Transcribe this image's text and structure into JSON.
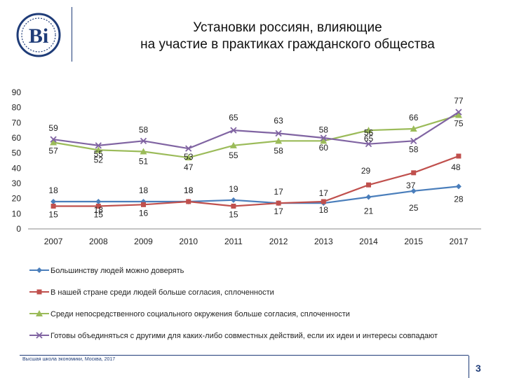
{
  "header": {
    "title_line1": "Установки россиян, влияющие",
    "title_line2": "на участие в практиках гражданского общества"
  },
  "footer": {
    "source": "Высшая школа экономики, Москва, 2017",
    "page": "3"
  },
  "colors": {
    "s1": "#4a7ebb",
    "s2": "#c0504d",
    "s3": "#9bbb59",
    "s4": "#8064a2",
    "brand": "#1f3c78"
  },
  "chart_data": {
    "type": "line",
    "categories": [
      "2007",
      "2008",
      "2009",
      "2010",
      "2011",
      "2012",
      "2013",
      "2014",
      "2015",
      "2017"
    ],
    "ylim": [
      0,
      90
    ],
    "yticks": [
      0,
      10,
      20,
      30,
      40,
      50,
      60,
      70,
      80,
      90
    ],
    "legend_position": "bottom",
    "series": [
      {
        "name": "Большинству людей можно доверять",
        "color": "#4a7ebb",
        "marker": "diamond",
        "values": [
          18,
          18,
          18,
          18,
          19,
          17,
          17,
          21,
          25,
          28
        ]
      },
      {
        "name": "В нашей стране среди людей больше согласия, сплоченности",
        "color": "#c0504d",
        "marker": "square",
        "values": [
          15,
          15,
          16,
          18,
          15,
          17,
          18,
          29,
          37,
          48
        ]
      },
      {
        "name": "Среди непосредственного социального окружения больше согласия, сплоченности",
        "color": "#9bbb59",
        "marker": "triangle",
        "values": [
          57,
          52,
          51,
          47,
          55,
          58,
          58,
          65,
          66,
          75
        ]
      },
      {
        "name": "Готовы объединяться с другими для каких-либо совместных действий, если их идеи и интересы совпадают",
        "color": "#8064a2",
        "marker": "x",
        "values": [
          59,
          55,
          58,
          53,
          65,
          63,
          60,
          56,
          58,
          77
        ]
      }
    ]
  }
}
